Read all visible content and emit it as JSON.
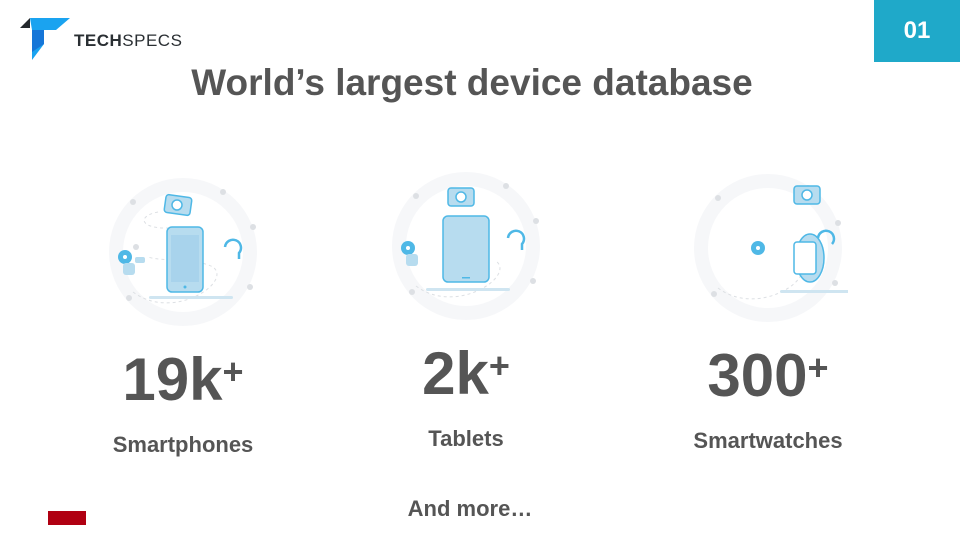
{
  "logo": {
    "text_bold": "TECH",
    "text_light": "SPECS"
  },
  "slide_number": "01",
  "title": "World’s largest device database",
  "stats": [
    {
      "value": "19k",
      "suffix": "+",
      "label": "Smartphones",
      "icon": "smartphone-illustration"
    },
    {
      "value": "2k",
      "suffix": "+",
      "label": "Tablets",
      "icon": "tablet-illustration"
    },
    {
      "value": "300",
      "suffix": "+",
      "label": "Smartwatches",
      "icon": "smartwatch-illustration"
    }
  ],
  "footer": "And more…",
  "colors": {
    "accent": "#1fa9c9",
    "text": "#555555",
    "footer_bar": "#b00012",
    "device": "#4fb8e6"
  }
}
